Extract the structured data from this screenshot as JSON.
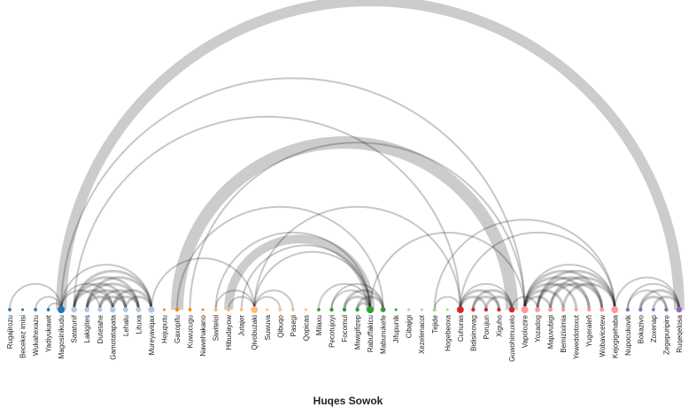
{
  "title": "Huqes Sowok",
  "diagram": {
    "type": "arc-diagram",
    "nodes": [
      {
        "label": "Rugajirozu",
        "group": 0
      },
      {
        "label": "Becekez imisi",
        "group": 0
      },
      {
        "label": "Wukahexazu",
        "group": 0
      },
      {
        "label": "Yadiyukawit",
        "group": 0
      },
      {
        "label": "Magosinikudu",
        "group": 0
      },
      {
        "label": "Satatunif",
        "group": 1
      },
      {
        "label": "Lakigites",
        "group": 1
      },
      {
        "label": "Dutetahe",
        "group": 1
      },
      {
        "label": "Gamotatapata",
        "group": 1
      },
      {
        "label": "Lehalu",
        "group": 1
      },
      {
        "label": "Lituxa",
        "group": 1
      },
      {
        "label": "Mureyaviqax",
        "group": 1
      },
      {
        "label": "Hejuputu",
        "group": 2
      },
      {
        "label": "Gaxopifu",
        "group": 2
      },
      {
        "label": "Kuwucugu",
        "group": 2
      },
      {
        "label": "Nawehakano",
        "group": 2
      },
      {
        "label": "Siwitelol",
        "group": 3
      },
      {
        "label": "Hibudayow",
        "group": 3
      },
      {
        "label": "Jutajer",
        "group": 3
      },
      {
        "label": "Qivobuzaki",
        "group": 3
      },
      {
        "label": "Suwuva",
        "group": 3
      },
      {
        "label": "Qibuqo",
        "group": 3
      },
      {
        "label": "Pasegi",
        "group": 3
      },
      {
        "label": "Qopicas",
        "group": 3
      },
      {
        "label": "Milaxu",
        "group": 4
      },
      {
        "label": "Pecotujoyi",
        "group": 4
      },
      {
        "label": "Focomul",
        "group": 4
      },
      {
        "label": "Miwigifizep",
        "group": 4
      },
      {
        "label": "Rabuffakicu",
        "group": 4
      },
      {
        "label": "Mabunukefe",
        "group": 4
      },
      {
        "label": "Jifupunik",
        "group": 4
      },
      {
        "label": "Cibajigi",
        "group": 5
      },
      {
        "label": "Xezelenacot",
        "group": 5
      },
      {
        "label": "Tejide",
        "group": 5
      },
      {
        "label": "Hogebeoxa",
        "group": 5
      },
      {
        "label": "Cuhuras",
        "group": 6
      },
      {
        "label": "Bidisinovag",
        "group": 6
      },
      {
        "label": "Porujun",
        "group": 6
      },
      {
        "label": "Xiguho",
        "group": 6
      },
      {
        "label": "Guwohimuxelo",
        "group": 6
      },
      {
        "label": "Vapolozire",
        "group": 7
      },
      {
        "label": "Yozadog",
        "group": 7
      },
      {
        "label": "Majuvubigi",
        "group": 7
      },
      {
        "label": "Bemiziximia",
        "group": 7
      },
      {
        "label": "Yeweddotoxut",
        "group": 7
      },
      {
        "label": "Yugeraleñ",
        "group": 7
      },
      {
        "label": "Wobavicetew",
        "group": 7
      },
      {
        "label": "Kejogigehaba",
        "group": 7
      },
      {
        "label": "Nupocukovik",
        "group": 8
      },
      {
        "label": "Bokazivo",
        "group": 8
      },
      {
        "label": "Zoxenap",
        "group": 8
      },
      {
        "label": "Zegepuripire",
        "group": 8
      },
      {
        "label": "Ruqeqelosa",
        "group": 8
      }
    ],
    "group_colors": [
      "#1f77b4",
      "#aec7e8",
      "#ff7f0e",
      "#ffbb78",
      "#2ca02c",
      "#98df8a",
      "#d62728",
      "#ff9896",
      "#9467bd"
    ],
    "edges": [
      [
        4,
        52,
        12
      ],
      [
        13,
        39,
        14
      ],
      [
        17,
        28,
        10
      ],
      [
        4,
        40,
        2
      ],
      [
        5,
        35,
        2
      ],
      [
        19,
        35,
        2
      ],
      [
        14,
        40,
        2
      ],
      [
        13,
        29,
        2
      ],
      [
        28,
        40,
        2
      ],
      [
        33,
        47,
        2
      ],
      [
        35,
        47,
        2
      ],
      [
        0,
        4,
        2
      ],
      [
        2,
        4,
        2
      ],
      [
        3,
        4,
        2
      ],
      [
        5,
        8,
        3
      ],
      [
        5,
        9,
        3
      ],
      [
        5,
        10,
        3
      ],
      [
        5,
        11,
        3
      ],
      [
        6,
        8,
        3
      ],
      [
        6,
        9,
        3
      ],
      [
        6,
        10,
        3
      ],
      [
        7,
        9,
        3
      ],
      [
        7,
        10,
        3
      ],
      [
        8,
        10,
        3
      ],
      [
        8,
        11,
        3
      ],
      [
        9,
        11,
        3
      ],
      [
        6,
        11,
        3
      ],
      [
        4,
        7,
        2
      ],
      [
        4,
        8,
        2
      ],
      [
        4,
        11,
        2
      ],
      [
        11,
        19,
        2
      ],
      [
        16,
        19,
        2
      ],
      [
        17,
        19,
        2
      ],
      [
        19,
        21,
        2
      ],
      [
        19,
        22,
        2
      ],
      [
        18,
        28,
        2
      ],
      [
        16,
        28,
        2
      ],
      [
        19,
        28,
        2
      ],
      [
        25,
        28,
        2
      ],
      [
        26,
        28,
        3
      ],
      [
        27,
        28,
        3
      ],
      [
        26,
        29,
        3
      ],
      [
        27,
        29,
        3
      ],
      [
        24,
        28,
        2
      ],
      [
        25,
        29,
        2
      ],
      [
        33,
        35,
        2
      ],
      [
        35,
        37,
        3
      ],
      [
        35,
        38,
        3
      ],
      [
        36,
        38,
        3
      ],
      [
        36,
        39,
        3
      ],
      [
        37,
        39,
        3
      ],
      [
        35,
        39,
        2
      ],
      [
        40,
        42,
        3
      ],
      [
        40,
        43,
        3
      ],
      [
        40,
        44,
        3
      ],
      [
        40,
        45,
        3
      ],
      [
        40,
        46,
        3
      ],
      [
        41,
        45,
        3
      ],
      [
        41,
        46,
        3
      ],
      [
        42,
        46,
        3
      ],
      [
        42,
        47,
        3
      ],
      [
        43,
        47,
        3
      ],
      [
        41,
        47,
        3
      ],
      [
        40,
        47,
        2
      ],
      [
        39,
        41,
        2
      ],
      [
        48,
        52,
        2
      ],
      [
        49,
        51,
        3
      ],
      [
        49,
        52,
        3
      ],
      [
        50,
        52,
        3
      ],
      [
        48,
        51,
        2
      ],
      [
        47,
        52,
        2
      ]
    ]
  }
}
